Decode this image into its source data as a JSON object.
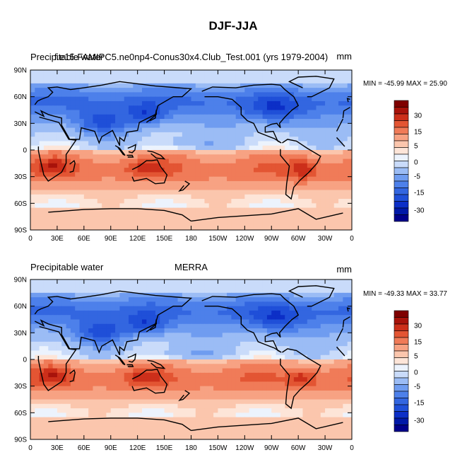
{
  "figure_title": "DJF-JJA",
  "chart_data": [
    {
      "type": "heatmap",
      "left_title": "Precipitable water",
      "center_title": "f.e15.FAMIPC5.ne0np4-Conus30x4.Club_Test.001 (yrs 1979-2004)",
      "units": "mm",
      "min_max_label": "MIN = -45.99 MAX =  25.90",
      "min": -45.99,
      "max": 25.9,
      "x_ticks": [
        "0",
        "30E",
        "60E",
        "90E",
        "120E",
        "150E",
        "180",
        "150W",
        "120W",
        "90W",
        "60W",
        "30W",
        "0"
      ],
      "y_ticks": [
        "90N",
        "60N",
        "30N",
        "0",
        "30S",
        "60S",
        "90S"
      ],
      "colorbar_labels": [
        "30",
        "15",
        "5",
        "0",
        "-5",
        "-15",
        "-30"
      ],
      "colorbar_levels": [
        -40,
        -35,
        -30,
        -25,
        -20,
        -15,
        -10,
        -5,
        -2,
        0,
        2,
        5,
        10,
        15,
        20,
        25,
        30,
        35
      ],
      "colorbar_colors": [
        "#00008b",
        "#0019a8",
        "#0c2fc7",
        "#1f4fd8",
        "#3366e0",
        "#4d80ea",
        "#6f9cf0",
        "#9bbcf5",
        "#c9dbfa",
        "#ecf3fd",
        "#fde5d8",
        "#fbc6ad",
        "#f7a283",
        "#f07b58",
        "#e35533",
        "#cc2f1a",
        "#a8130b",
        "#7f0000"
      ],
      "grid": false,
      "legend": "right"
    },
    {
      "type": "heatmap",
      "left_title": "Precipitable water",
      "center_title": "MERRA",
      "units": "mm",
      "min_max_label": "MIN = -49.33 MAX =  33.77",
      "min": -49.33,
      "max": 33.77,
      "x_ticks": [
        "0",
        "30E",
        "60E",
        "90E",
        "120E",
        "150E",
        "180",
        "150W",
        "120W",
        "90W",
        "60W",
        "30W",
        "0"
      ],
      "y_ticks": [
        "90N",
        "60N",
        "30N",
        "0",
        "30S",
        "60S",
        "90S"
      ],
      "colorbar_labels": [
        "30",
        "15",
        "5",
        "0",
        "-5",
        "-15",
        "-30"
      ],
      "colorbar_levels": [
        -40,
        -35,
        -30,
        -25,
        -20,
        -15,
        -10,
        -5,
        -2,
        0,
        2,
        5,
        10,
        15,
        20,
        25,
        30,
        35
      ],
      "colorbar_colors": [
        "#00008b",
        "#0019a8",
        "#0c2fc7",
        "#1f4fd8",
        "#3366e0",
        "#4d80ea",
        "#6f9cf0",
        "#9bbcf5",
        "#c9dbfa",
        "#ecf3fd",
        "#fde5d8",
        "#fbc6ad",
        "#f7a283",
        "#f07b58",
        "#e35533",
        "#cc2f1a",
        "#a8130b",
        "#7f0000"
      ],
      "grid": false,
      "legend": "right"
    }
  ]
}
